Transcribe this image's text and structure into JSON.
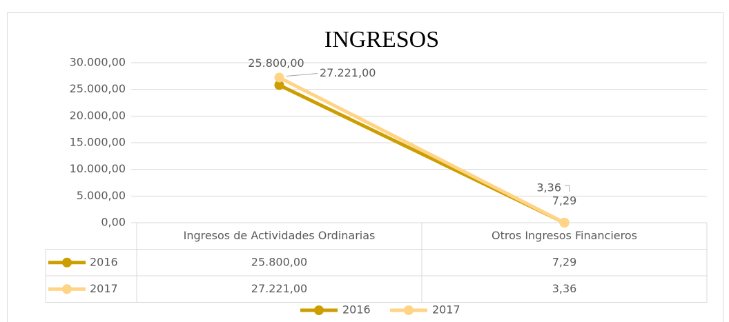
{
  "chart_data": {
    "type": "line",
    "title": "INGRESOS",
    "categories": [
      "Ingresos de Actividades Ordinarias",
      "Otros Ingresos Financieros"
    ],
    "series": [
      {
        "name": "2016",
        "color": "#cc9e00",
        "values": [
          25800,
          7.29
        ],
        "value_labels": [
          "25.800,00",
          "7,29"
        ]
      },
      {
        "name": "2017",
        "color": "#ffd486",
        "values": [
          27221,
          3.36
        ],
        "value_labels": [
          "27.221,00",
          "3,36"
        ]
      }
    ],
    "ylim": [
      0,
      30000
    ],
    "yticks": [
      {
        "value": 0,
        "label": "0,00"
      },
      {
        "value": 5000,
        "label": "5.000,00"
      },
      {
        "value": 10000,
        "label": "10.000,00"
      },
      {
        "value": 15000,
        "label": "15.000,00"
      },
      {
        "value": 20000,
        "label": "20.000,00"
      },
      {
        "value": 25000,
        "label": "25.000,00"
      },
      {
        "value": 30000,
        "label": "30.000,00"
      }
    ],
    "grid": true,
    "legend": "bottom"
  }
}
